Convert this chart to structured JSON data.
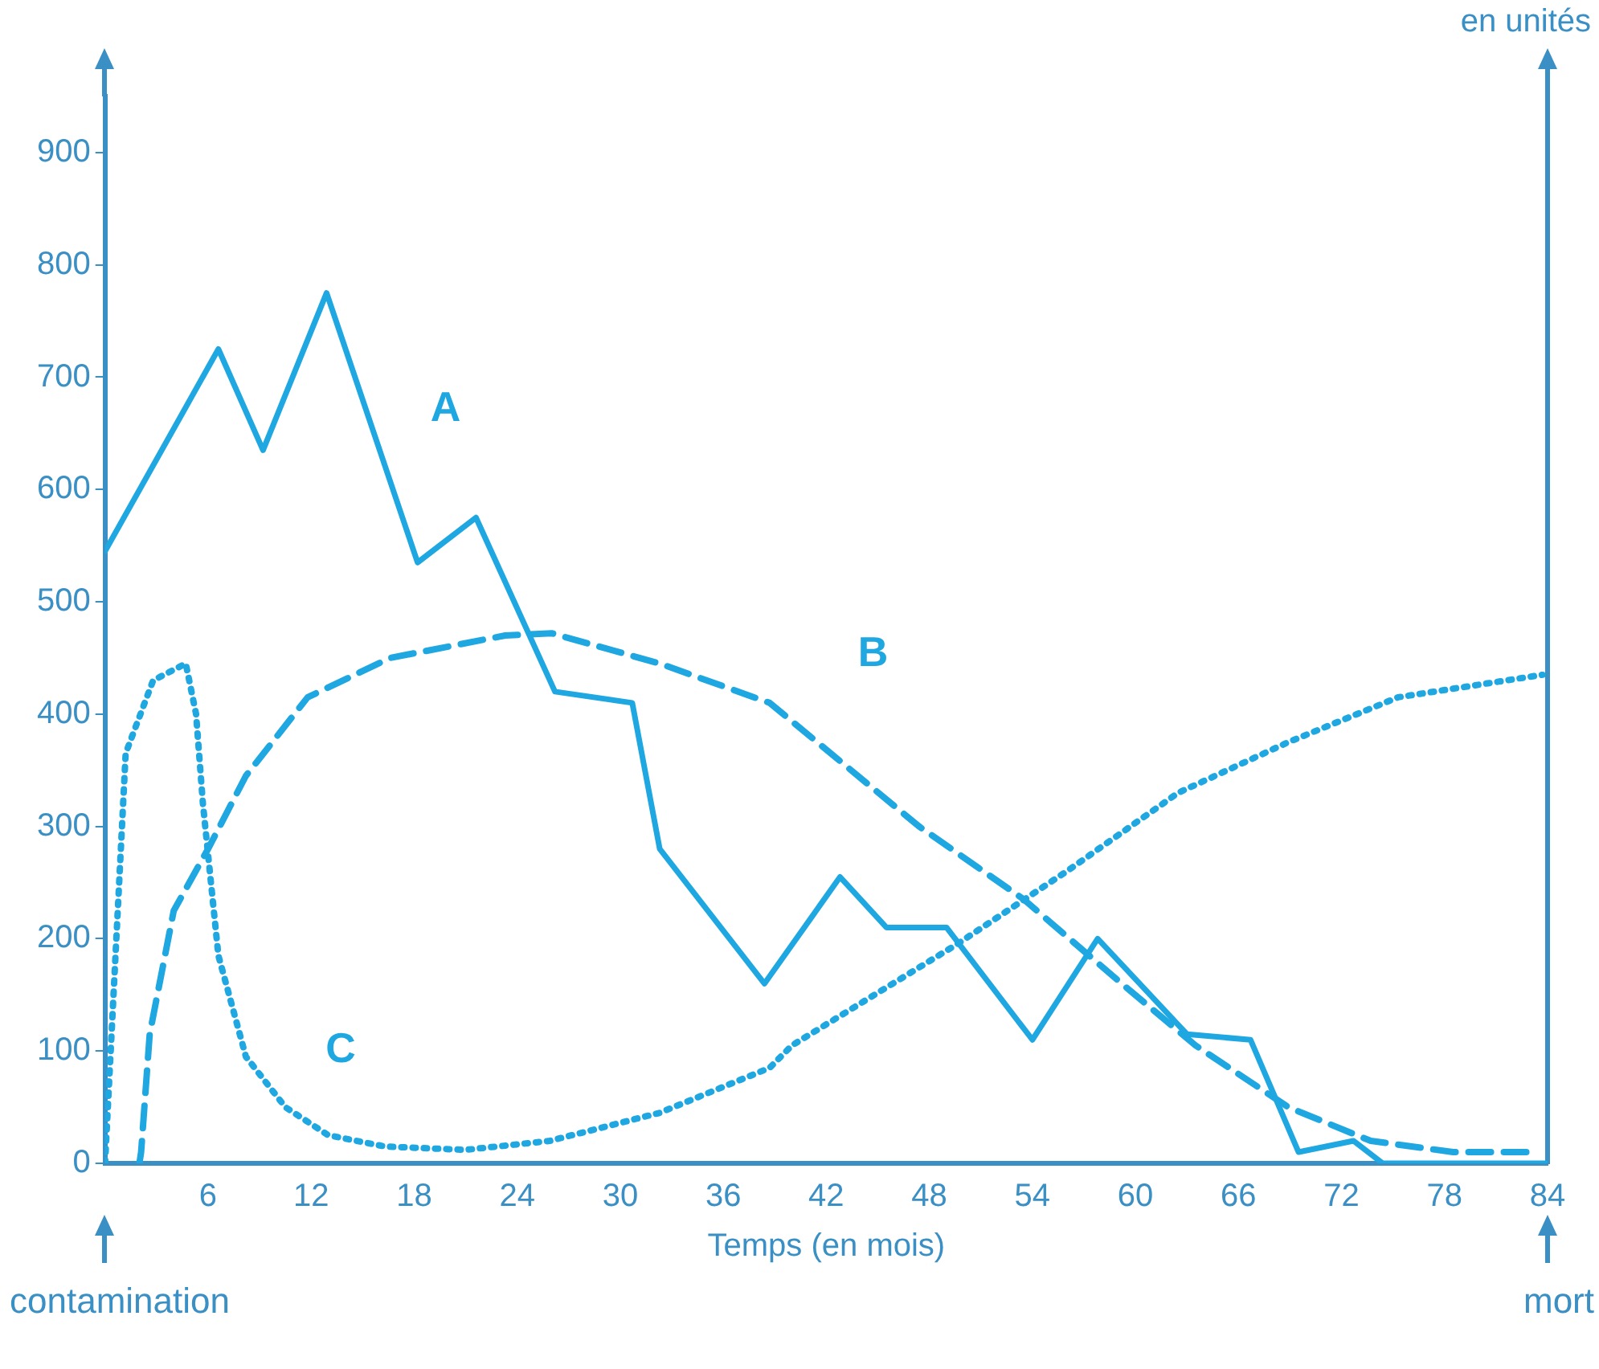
{
  "chart_data": {
    "type": "line",
    "xlabel": "Temps (en mois)",
    "y2label": "en unités",
    "xlim": [
      0,
      84
    ],
    "xticks": [
      6,
      12,
      18,
      24,
      30,
      36,
      42,
      48,
      54,
      60,
      66,
      72,
      78,
      84
    ],
    "ylim": [
      0,
      950
    ],
    "yticks": [
      0,
      100,
      200,
      300,
      400,
      500,
      600,
      700,
      800,
      900
    ],
    "grid": false,
    "legend": false,
    "marker": "none",
    "series": [
      {
        "name": "A",
        "color": "#1ea7e1",
        "line_style": "solid",
        "x": [
          0,
          6.6,
          9.2,
          12.9,
          18.2,
          21.6,
          26.2,
          30.7,
          32.3,
          38.4,
          42.8,
          45.5,
          49,
          54,
          57.8,
          63,
          66.7,
          69.5,
          72.7,
          74.4,
          84
        ],
        "values": [
          545,
          725,
          635,
          775,
          535,
          575,
          420,
          410,
          280,
          160,
          255,
          210,
          210,
          110,
          200,
          115,
          110,
          10,
          20,
          0,
          0
        ]
      },
      {
        "name": "B",
        "color": "#1ea7e1",
        "line_style": "dashed",
        "x": [
          2,
          2.1,
          2.6,
          4,
          6,
          8.2,
          11.8,
          16.6,
          23.3,
          26,
          32.3,
          38.7,
          47.4,
          53.5,
          59.2,
          63.5,
          68.9,
          73.7,
          78.5,
          83
        ],
        "values": [
          0,
          10,
          115,
          225,
          280,
          345,
          415,
          450,
          470,
          472,
          445,
          410,
          300,
          235,
          160,
          105,
          50,
          20,
          10,
          10
        ]
      },
      {
        "name": "C",
        "color": "#1ea7e1",
        "line_style": "dotted",
        "x": [
          0,
          1.2,
          2.8,
          4.7,
          5.3,
          5.7,
          6.6,
          8.2,
          10.5,
          13,
          16.3,
          21,
          25.9,
          32.3,
          38.7,
          40,
          49.6,
          56,
          62.5,
          68.9,
          75.3,
          83.7
        ],
        "values": [
          0,
          365,
          430,
          445,
          400,
          320,
          185,
          95,
          50,
          25,
          15,
          12,
          20,
          45,
          85,
          105,
          195,
          260,
          330,
          375,
          415,
          435
        ]
      }
    ],
    "annotations": [
      "contamination",
      "mort"
    ]
  }
}
